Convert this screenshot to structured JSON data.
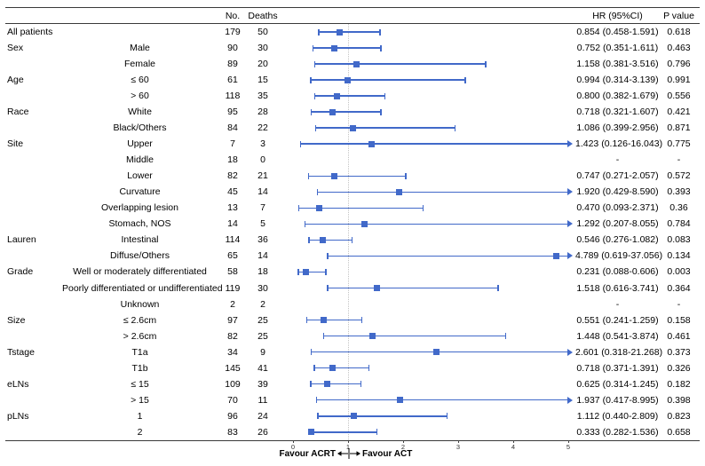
{
  "columns": {
    "no": "No.",
    "deaths": "Deaths",
    "hr": "HR (95%CI)",
    "p": "P value"
  },
  "colors": {
    "marker": "#4169c9",
    "ref_line": "#c4c4c4",
    "rule": "#3a3a3a",
    "text": "#000000"
  },
  "chart_data": {
    "type": "forest",
    "axis": {
      "min": 0,
      "max": 5,
      "ticks": [
        0,
        1,
        2,
        3,
        4,
        5
      ],
      "ref_line": 1,
      "favour_left": "Favour ACRT",
      "favour_right": "Favour ACT"
    },
    "rows": [
      {
        "group": "All patients",
        "subgroup": "",
        "no": "179",
        "deaths": "50",
        "hr": 0.854,
        "lo": 0.458,
        "hi": 1.591,
        "hr_text": "0.854 (0.458-1.591)",
        "p": "0.618"
      },
      {
        "group": "Sex",
        "subgroup": "Male",
        "no": "90",
        "deaths": "30",
        "hr": 0.752,
        "lo": 0.351,
        "hi": 1.611,
        "hr_text": "0.752 (0.351-1.611)",
        "p": "0.463"
      },
      {
        "group": "",
        "subgroup": "Female",
        "no": "89",
        "deaths": "20",
        "hr": 1.158,
        "lo": 0.381,
        "hi": 3.516,
        "hr_text": "1.158 (0.381-3.516)",
        "p": "0.796"
      },
      {
        "group": "Age",
        "subgroup": "≤ 60",
        "no": "61",
        "deaths": "15",
        "hr": 0.994,
        "lo": 0.314,
        "hi": 3.139,
        "hr_text": "0.994 (0.314-3.139)",
        "p": "0.991"
      },
      {
        "group": "",
        "subgroup": "> 60",
        "no": "118",
        "deaths": "35",
        "hr": 0.8,
        "lo": 0.382,
        "hi": 1.679,
        "hr_text": "0.800 (0.382-1.679)",
        "p": "0.556"
      },
      {
        "group": "Race",
        "subgroup": "White",
        "no": "95",
        "deaths": "28",
        "hr": 0.718,
        "lo": 0.321,
        "hi": 1.607,
        "hr_text": "0.718 (0.321-1.607)",
        "p": "0.421"
      },
      {
        "group": "",
        "subgroup": "Black/Others",
        "no": "84",
        "deaths": "22",
        "hr": 1.086,
        "lo": 0.399,
        "hi": 2.956,
        "hr_text": "1.086 (0.399-2.956)",
        "p": "0.871"
      },
      {
        "group": "Site",
        "subgroup": "Upper",
        "no": "7",
        "deaths": "3",
        "hr": 1.423,
        "lo": 0.126,
        "hi": 16.043,
        "hr_text": "1.423 (0.126-16.043)",
        "p": "0.775"
      },
      {
        "group": "",
        "subgroup": "Middle",
        "no": "18",
        "deaths": "0",
        "hr": null,
        "lo": null,
        "hi": null,
        "hr_text": "-",
        "p": "-"
      },
      {
        "group": "",
        "subgroup": "Lower",
        "no": "82",
        "deaths": "21",
        "hr": 0.747,
        "lo": 0.271,
        "hi": 2.057,
        "hr_text": "0.747 (0.271-2.057)",
        "p": "0.572"
      },
      {
        "group": "",
        "subgroup": "Curvature",
        "no": "45",
        "deaths": "14",
        "hr": 1.92,
        "lo": 0.429,
        "hi": 8.59,
        "hr_text": "1.920 (0.429-8.590)",
        "p": "0.393"
      },
      {
        "group": "",
        "subgroup": "Overlapping lesion",
        "no": "13",
        "deaths": "7",
        "hr": 0.47,
        "lo": 0.093,
        "hi": 2.371,
        "hr_text": "0.470 (0.093-2.371)",
        "p": "0.36"
      },
      {
        "group": "",
        "subgroup": "Stomach, NOS",
        "no": "14",
        "deaths": "5",
        "hr": 1.292,
        "lo": 0.207,
        "hi": 8.055,
        "hr_text": "1.292 (0.207-8.055)",
        "p": "0.784"
      },
      {
        "group": "Lauren",
        "subgroup": "Intestinal",
        "no": "114",
        "deaths": "36",
        "hr": 0.546,
        "lo": 0.276,
        "hi": 1.082,
        "hr_text": "0.546 (0.276-1.082)",
        "p": "0.083"
      },
      {
        "group": "",
        "subgroup": "Diffuse/Others",
        "no": "65",
        "deaths": "14",
        "hr": 4.789,
        "lo": 0.619,
        "hi": 37.056,
        "hr_text": "4.789 (0.619-37.056)",
        "p": "0.134"
      },
      {
        "group": "Grade",
        "subgroup": "Well or moderately differentiated",
        "no": "58",
        "deaths": "18",
        "hr": 0.231,
        "lo": 0.088,
        "hi": 0.606,
        "hr_text": "0.231 (0.088-0.606)",
        "p": "0.003"
      },
      {
        "group": "",
        "subgroup": "Poorly differentiated or undifferentiated",
        "no": "119",
        "deaths": "30",
        "hr": 1.518,
        "lo": 0.616,
        "hi": 3.741,
        "hr_text": "1.518 (0.616-3.741)",
        "p": "0.364"
      },
      {
        "group": "",
        "subgroup": "Unknown",
        "no": "2",
        "deaths": "2",
        "hr": null,
        "lo": null,
        "hi": null,
        "hr_text": "-",
        "p": "-"
      },
      {
        "group": "Size",
        "subgroup": "≤ 2.6cm",
        "no": "97",
        "deaths": "25",
        "hr": 0.551,
        "lo": 0.241,
        "hi": 1.259,
        "hr_text": "0.551 (0.241-1.259)",
        "p": "0.158"
      },
      {
        "group": "",
        "subgroup": "> 2.6cm",
        "no": "82",
        "deaths": "25",
        "hr": 1.448,
        "lo": 0.541,
        "hi": 3.874,
        "hr_text": "1.448 (0.541-3.874)",
        "p": "0.461"
      },
      {
        "group": "Tstage",
        "subgroup": "T1a",
        "no": "34",
        "deaths": "9",
        "hr": 2.601,
        "lo": 0.318,
        "hi": 21.268,
        "hr_text": "2.601 (0.318-21.268)",
        "p": "0.373"
      },
      {
        "group": "",
        "subgroup": "T1b",
        "no": "145",
        "deaths": "41",
        "hr": 0.718,
        "lo": 0.371,
        "hi": 1.391,
        "hr_text": "0.718 (0.371-1.391)",
        "p": "0.326"
      },
      {
        "group": "eLNs",
        "subgroup": "≤ 15",
        "no": "109",
        "deaths": "39",
        "hr": 0.625,
        "lo": 0.314,
        "hi": 1.245,
        "hr_text": "0.625 (0.314-1.245)",
        "p": "0.182"
      },
      {
        "group": "",
        "subgroup": "> 15",
        "no": "70",
        "deaths": "11",
        "hr": 1.937,
        "lo": 0.417,
        "hi": 8.995,
        "hr_text": "1.937 (0.417-8.995)",
        "p": "0.398"
      },
      {
        "group": "pLNs",
        "subgroup": "1",
        "no": "96",
        "deaths": "24",
        "hr": 1.112,
        "lo": 0.44,
        "hi": 2.809,
        "hr_text": "1.112 (0.440-2.809)",
        "p": "0.823"
      },
      {
        "group": "",
        "subgroup": "2",
        "no": "83",
        "deaths": "26",
        "hr": 0.333,
        "lo": 0.282,
        "hi": 1.536,
        "hr_text": "0.333 (0.282-1.536)",
        "p": "0.658"
      }
    ]
  }
}
